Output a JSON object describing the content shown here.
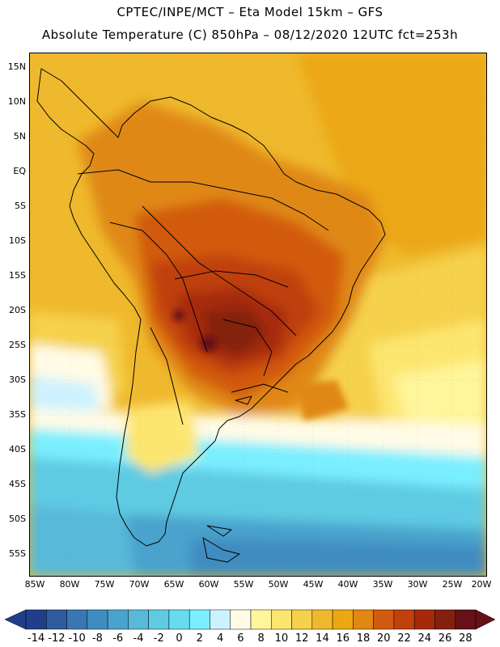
{
  "header": {
    "line1": "CPTEC/INPE/MCT –  Eta Model 15km – GFS",
    "line2": "Absolute Temperature (C) 850hPa – 08/12/2020 12UTC fct=253h"
  },
  "axes": {
    "lat_labels": [
      "15N",
      "10N",
      "5N",
      "EQ",
      "5S",
      "10S",
      "15S",
      "20S",
      "25S",
      "30S",
      "35S",
      "40S",
      "45S",
      "50S",
      "55S"
    ],
    "lon_labels": [
      "85W",
      "80W",
      "75W",
      "70W",
      "65W",
      "60W",
      "55W",
      "50W",
      "45W",
      "40W",
      "35W",
      "30W",
      "25W",
      "20W"
    ]
  },
  "colorbar": {
    "labels": [
      "-14",
      "-12",
      "-10",
      "-8",
      "-6",
      "-4",
      "-2",
      "0",
      "2",
      "4",
      "6",
      "8",
      "10",
      "12",
      "14",
      "16",
      "18",
      "20",
      "22",
      "24",
      "26",
      "28"
    ],
    "colors": [
      "#1f3f8a",
      "#2f5a9e",
      "#3a76b4",
      "#3f8cc0",
      "#4aa3cc",
      "#58b9d9",
      "#5fcbe3",
      "#66dcec",
      "#7aefff",
      "#cdf2ff",
      "#fffbe6",
      "#fff59a",
      "#fde670",
      "#f6d14c",
      "#efb92d",
      "#eca812",
      "#e08812",
      "#d25a10",
      "#c0400e",
      "#a6290b",
      "#832010",
      "#661018"
    ]
  }
}
